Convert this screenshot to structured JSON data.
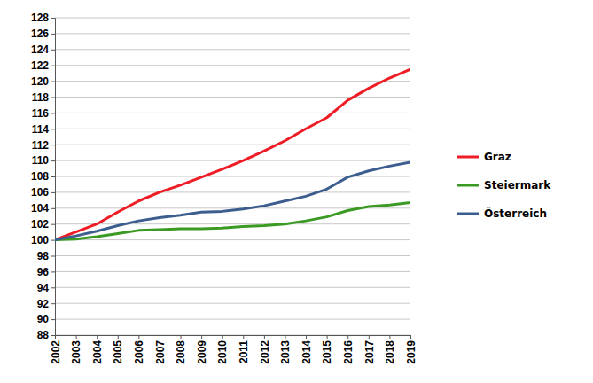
{
  "chart_data": {
    "type": "line",
    "categories": [
      "2002",
      "2003",
      "2004",
      "2005",
      "2006",
      "2007",
      "2008",
      "2009",
      "2010",
      "2011",
      "2012",
      "2013",
      "2014",
      "2015",
      "2016",
      "2017",
      "2018",
      "2019"
    ],
    "series": [
      {
        "name": "Graz",
        "color": "#ee1c24",
        "values": [
          100,
          101,
          102,
          103.5,
          104.9,
          106,
          106.9,
          107.9,
          108.9,
          110,
          111.2,
          112.5,
          114,
          115.4,
          117.6,
          119.1,
          120.4,
          121.5
        ]
      },
      {
        "name": "Steiermark",
        "color": "#3a9a24",
        "values": [
          100,
          100.1,
          100.4,
          100.8,
          101.2,
          101.3,
          101.4,
          101.4,
          101.5,
          101.7,
          101.8,
          102,
          102.4,
          102.9,
          103.7,
          104.2,
          104.4,
          104.7
        ]
      },
      {
        "name": "Österreich",
        "color": "#3c5e8f",
        "values": [
          100,
          100.5,
          101.1,
          101.8,
          102.4,
          102.8,
          103.1,
          103.5,
          103.6,
          103.9,
          104.3,
          104.9,
          105.5,
          106.4,
          107.9,
          108.7,
          109.3,
          109.8
        ]
      }
    ],
    "ylim": [
      88,
      128
    ],
    "yticks": [
      88,
      90,
      92,
      94,
      96,
      98,
      100,
      102,
      104,
      106,
      108,
      110,
      112,
      114,
      116,
      118,
      120,
      122,
      124,
      126,
      128
    ],
    "grid": true,
    "legend": "right"
  }
}
